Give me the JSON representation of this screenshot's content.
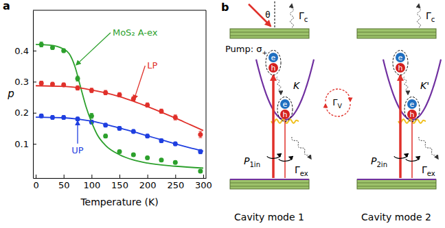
{
  "chart_data": {
    "type": "scatter",
    "panel_label": "a",
    "x_label": "Temperature (K)",
    "y_label": "p",
    "xlim": [
      -5,
      305
    ],
    "xticks": [
      0,
      50,
      100,
      150,
      200,
      250,
      300
    ],
    "ylim": [
      -0.01,
      0.53
    ],
    "yticks": [
      0.1,
      0.2,
      0.3,
      0.4
    ],
    "series": [
      {
        "name": "MoS₂ A-ex",
        "type": "scatter",
        "marker": "circle",
        "color": "#2ca02c",
        "x": [
          10,
          30,
          50,
          75,
          100,
          125,
          150,
          175,
          200,
          225,
          250,
          295
        ],
        "values": [
          0.42,
          0.41,
          0.4,
          0.31,
          0.19,
          0.125,
          0.075,
          0.065,
          0.055,
          0.048,
          0.04,
          0.012
        ],
        "errors": [
          0.008,
          0.006,
          0.006,
          0.008,
          0.008,
          0.006,
          0.005,
          0.005,
          0.005,
          0.005,
          0.005,
          0.005
        ]
      },
      {
        "name": "LP",
        "type": "scatter",
        "marker": "circle",
        "color": "#e0302a",
        "x": [
          10,
          30,
          50,
          75,
          100,
          125,
          150,
          175,
          200,
          225,
          250,
          295
        ],
        "values": [
          0.295,
          0.292,
          0.29,
          0.28,
          0.272,
          0.265,
          0.258,
          0.245,
          0.225,
          0.205,
          0.185,
          0.13
        ],
        "errors": [
          0.007,
          0.006,
          0.006,
          0.007,
          0.007,
          0.007,
          0.007,
          0.007,
          0.007,
          0.007,
          0.008,
          0.01
        ]
      },
      {
        "name": "UP",
        "type": "scatter",
        "marker": "circle",
        "color": "#1f3fe0",
        "x": [
          10,
          30,
          50,
          75,
          100,
          125,
          150,
          175,
          200,
          225,
          250,
          295
        ],
        "values": [
          0.19,
          0.185,
          0.185,
          0.18,
          0.17,
          0.16,
          0.15,
          0.14,
          0.125,
          0.11,
          0.1,
          0.075
        ],
        "errors": [
          0.006,
          0.006,
          0.006,
          0.006,
          0.006,
          0.006,
          0.006,
          0.006,
          0.006,
          0.006,
          0.006,
          0.007
        ]
      },
      {
        "type": "line",
        "line_style": "solid",
        "color": "#2ca02c",
        "x": [
          0,
          25,
          50,
          60,
          70,
          80,
          90,
          100,
          110,
          125,
          150,
          175,
          200,
          250,
          300
        ],
        "values": [
          0.42,
          0.418,
          0.405,
          0.39,
          0.35,
          0.285,
          0.22,
          0.17,
          0.13,
          0.095,
          0.065,
          0.048,
          0.038,
          0.028,
          0.022
        ]
      },
      {
        "type": "line",
        "line_style": "solid",
        "color": "#e0302a",
        "x": [
          0,
          50,
          75,
          100,
          125,
          150,
          175,
          200,
          225,
          250,
          275,
          300
        ],
        "values": [
          0.287,
          0.285,
          0.281,
          0.273,
          0.264,
          0.252,
          0.237,
          0.22,
          0.202,
          0.183,
          0.163,
          0.143
        ]
      },
      {
        "type": "line",
        "line_style": "solid",
        "color": "#1f3fe0",
        "x": [
          0,
          50,
          75,
          100,
          125,
          150,
          175,
          200,
          225,
          250,
          275,
          300
        ],
        "values": [
          0.186,
          0.184,
          0.18,
          0.173,
          0.163,
          0.151,
          0.139,
          0.126,
          0.113,
          0.1,
          0.088,
          0.077
        ]
      }
    ]
  },
  "diagram": {
    "panel_label": "b",
    "pump": "Pump: σ+",
    "angle": "θ",
    "intervalley": "ΓV",
    "modes": [
      {
        "valley": "K",
        "cavity": "Cavity mode 1",
        "pump_rate": "P1in",
        "cavity_loss": "Γc",
        "exciton_loss": "Γex",
        "electron": "e",
        "hole": "h"
      },
      {
        "valley": "K'",
        "cavity": "Cavity mode 2",
        "pump_rate": "P2in",
        "cavity_loss": "Γc",
        "exciton_loss": "Γex",
        "electron": "e",
        "hole": "h"
      }
    ]
  }
}
